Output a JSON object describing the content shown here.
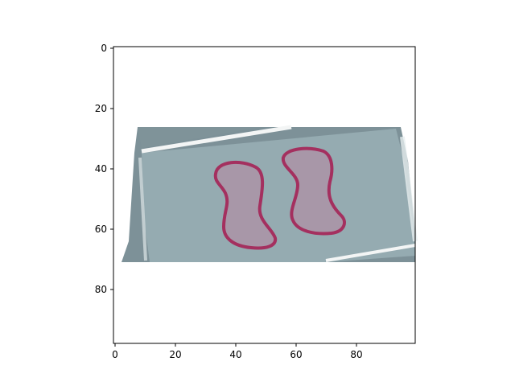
{
  "figure": {
    "x_ticks": [
      "0",
      "20",
      "40",
      "60",
      "80"
    ],
    "y_ticks": [
      "0",
      "20",
      "40",
      "60",
      "80"
    ]
  },
  "image": {
    "subject": "photo of a rectangular grey-blue card with two pink outlined peanut-shaped blobs",
    "card_color": "#95abb1",
    "shadow_color": "#7d9198",
    "blob_fill": "#a897a8",
    "blob_outline": "#a4305f",
    "glare_color": "#f3f5f5"
  }
}
